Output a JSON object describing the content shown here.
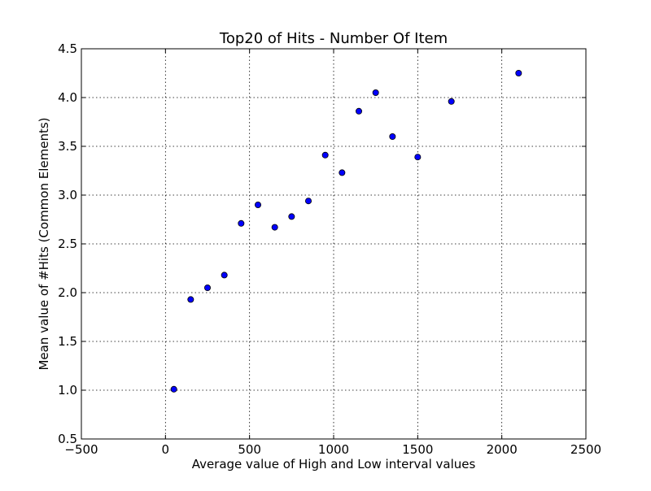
{
  "chart_data": {
    "type": "scatter",
    "title": "Top20 of Hits - Number Of Item",
    "xlabel": "Average value of High and Low interval values",
    "ylabel": "Mean value of #Hits (Common Elements)",
    "xlim": [
      -500,
      2500
    ],
    "ylim": [
      0.5,
      4.5
    ],
    "xticks": [
      -500,
      0,
      500,
      1000,
      1500,
      2000,
      2500
    ],
    "yticks": [
      0.5,
      1.0,
      1.5,
      2.0,
      2.5,
      3.0,
      3.5,
      4.0,
      4.5
    ],
    "xtick_labels": [
      "−500",
      "0",
      "500",
      "1000",
      "1500",
      "2000",
      "2500"
    ],
    "ytick_labels": [
      "0.5",
      "1.0",
      "1.5",
      "2.0",
      "2.5",
      "3.0",
      "3.5",
      "4.0",
      "4.5"
    ],
    "grid": true,
    "marker_color": "#0000ff",
    "points": [
      {
        "x": 50,
        "y": 1.01
      },
      {
        "x": 150,
        "y": 1.93
      },
      {
        "x": 250,
        "y": 2.05
      },
      {
        "x": 350,
        "y": 2.18
      },
      {
        "x": 450,
        "y": 2.71
      },
      {
        "x": 550,
        "y": 2.9
      },
      {
        "x": 650,
        "y": 2.67
      },
      {
        "x": 750,
        "y": 2.78
      },
      {
        "x": 850,
        "y": 2.94
      },
      {
        "x": 950,
        "y": 3.41
      },
      {
        "x": 1050,
        "y": 3.23
      },
      {
        "x": 1150,
        "y": 3.86
      },
      {
        "x": 1250,
        "y": 4.05
      },
      {
        "x": 1350,
        "y": 3.6
      },
      {
        "x": 1500,
        "y": 3.39
      },
      {
        "x": 1700,
        "y": 3.96
      },
      {
        "x": 2100,
        "y": 4.25
      }
    ]
  }
}
